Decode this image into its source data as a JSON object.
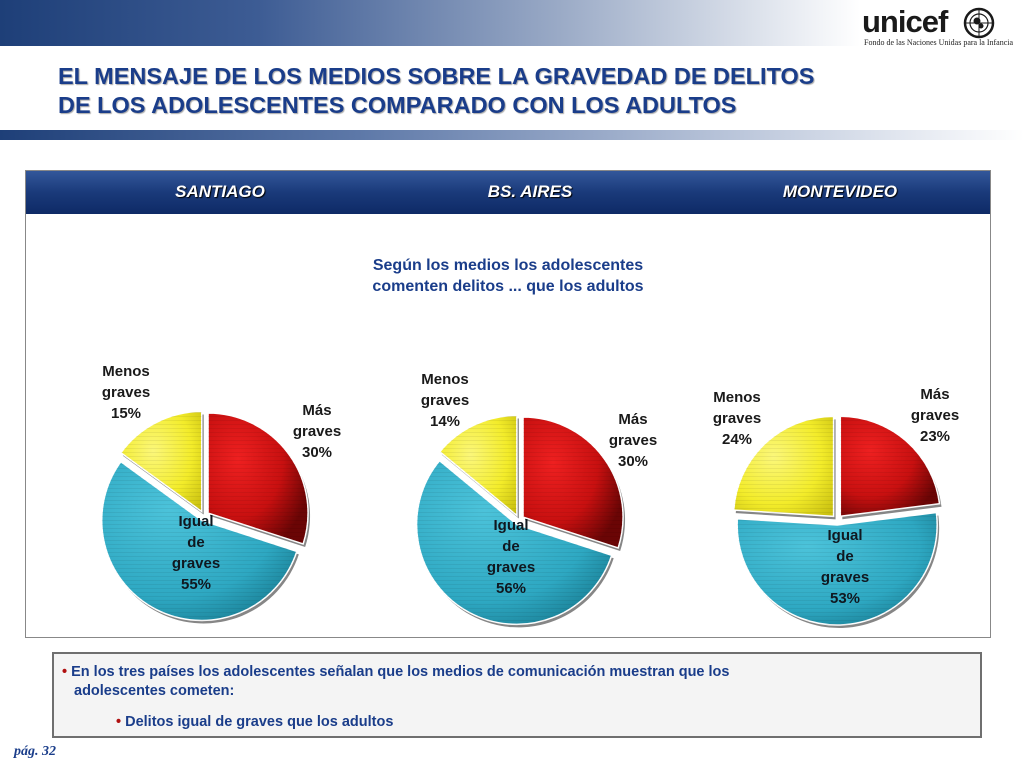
{
  "logo": {
    "name": "unicef",
    "subtitle": "Fondo de las Naciones Unidas para la Infancia"
  },
  "title": {
    "line1": "EL MENSAJE DE LOS MEDIOS SOBRE LA GRAVEDAD DE DELITOS",
    "line2": "DE LOS ADOLESCENTES COMPARADO CON LOS ADULTOS"
  },
  "colors": {
    "mas_graves": "#d01010",
    "igual": "#33b3cc",
    "menos_graves": "#f4ef2a",
    "title": "#1a3d8a"
  },
  "chart_data": [
    {
      "type": "pie",
      "title": "SANTIAGO",
      "subtitle": "Según los medios los adolescentes comenten delitos ... que los adultos",
      "slices": [
        {
          "label": "Más graves",
          "value": 30
        },
        {
          "label": "Igual de graves",
          "value": 55
        },
        {
          "label": "Menos graves",
          "value": 15
        }
      ]
    },
    {
      "type": "pie",
      "title": "BS. AIRES",
      "slices": [
        {
          "label": "Más graves",
          "value": 30
        },
        {
          "label": "Igual de graves",
          "value": 56
        },
        {
          "label": "Menos graves",
          "value": 14
        }
      ]
    },
    {
      "type": "pie",
      "title": "MONTEVIDEO",
      "slices": [
        {
          "label": "Más graves",
          "value": 23
        },
        {
          "label": "Igual de graves",
          "value": 53
        },
        {
          "label": "Menos graves",
          "value": 24
        }
      ]
    }
  ],
  "pie_labels": [
    {
      "mas": [
        "Más",
        "graves",
        "30%"
      ],
      "igual": [
        "Igual",
        "de",
        "graves",
        "55%"
      ],
      "menos": [
        "Menos",
        "graves",
        "15%"
      ]
    },
    {
      "mas": [
        "Más",
        "graves",
        "30%"
      ],
      "igual": [
        "Igual",
        "de",
        "graves",
        "56%"
      ],
      "menos": [
        "Menos",
        "graves",
        "14%"
      ]
    },
    {
      "mas": [
        "Más",
        "graves",
        "23%"
      ],
      "igual": [
        "Igual",
        "de",
        "graves",
        "53%"
      ],
      "menos": [
        "Menos",
        "graves",
        "24%"
      ]
    }
  ],
  "subtitle_lines": [
    "Según los medios los adolescentes",
    "comenten delitos ... que los adultos"
  ],
  "note": {
    "bullet": "•",
    "line1": "En los tres países los adolescentes señalan que los medios de comunicación muestran que los",
    "line2": "adolescentes cometen:",
    "sub": "Delitos igual de graves que los adultos"
  },
  "page": "pág. 32"
}
